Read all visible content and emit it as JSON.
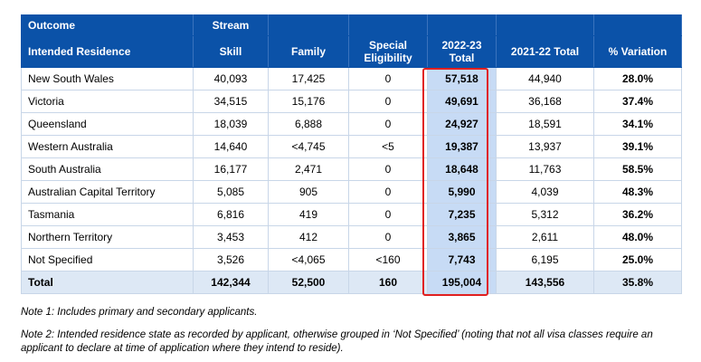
{
  "header": {
    "outcome": "Outcome",
    "stream": "Stream",
    "intended_residence": "Intended Residence",
    "columns": [
      "Skill",
      "Family",
      "Special Eligibility",
      "2022-23 Total",
      "2021-22 Total",
      "% Variation"
    ]
  },
  "rows": [
    {
      "state": "New South Wales",
      "skill": "40,093",
      "family": "17,425",
      "special": "0",
      "total_2223": "57,518",
      "total_2122": "44,940",
      "variation": "28.0%"
    },
    {
      "state": "Victoria",
      "skill": "34,515",
      "family": "15,176",
      "special": "0",
      "total_2223": "49,691",
      "total_2122": "36,168",
      "variation": "37.4%"
    },
    {
      "state": "Queensland",
      "skill": "18,039",
      "family": "6,888",
      "special": "0",
      "total_2223": "24,927",
      "total_2122": "18,591",
      "variation": "34.1%"
    },
    {
      "state": "Western Australia",
      "skill": "14,640",
      "family": "<4,745",
      "special": "<5",
      "total_2223": "19,387",
      "total_2122": "13,937",
      "variation": "39.1%"
    },
    {
      "state": "South Australia",
      "skill": "16,177",
      "family": "2,471",
      "special": "0",
      "total_2223": "18,648",
      "total_2122": "11,763",
      "variation": "58.5%"
    },
    {
      "state": "Australian Capital Territory",
      "skill": "5,085",
      "family": "905",
      "special": "0",
      "total_2223": "5,990",
      "total_2122": "4,039",
      "variation": "48.3%"
    },
    {
      "state": "Tasmania",
      "skill": "6,816",
      "family": "419",
      "special": "0",
      "total_2223": "7,235",
      "total_2122": "5,312",
      "variation": "36.2%"
    },
    {
      "state": "Northern Territory",
      "skill": "3,453",
      "family": "412",
      "special": "0",
      "total_2223": "3,865",
      "total_2122": "2,611",
      "variation": "48.0%"
    },
    {
      "state": "Not Specified",
      "skill": "3,526",
      "family": "<4,065",
      "special": "<160",
      "total_2223": "7,743",
      "total_2122": "6,195",
      "variation": "25.0%"
    }
  ],
  "total": {
    "state": "Total",
    "skill": "142,344",
    "family": "52,500",
    "special": "160",
    "total_2223": "195,004",
    "total_2122": "143,556",
    "variation": "35.8%"
  },
  "notes": {
    "note1": "Note 1: Includes primary and secondary applicants.",
    "note2": "Note 2: Intended residence state as recorded by applicant, otherwise grouped in ‘Not Specified’ (noting that not all visa classes require an applicant to declare at time of application where they intend to reside)."
  },
  "colors": {
    "header_bg": "#0b52a8",
    "highlight_col": "#c7dbf5",
    "total_row": "#dde8f5",
    "callout_border": "#e02020"
  }
}
